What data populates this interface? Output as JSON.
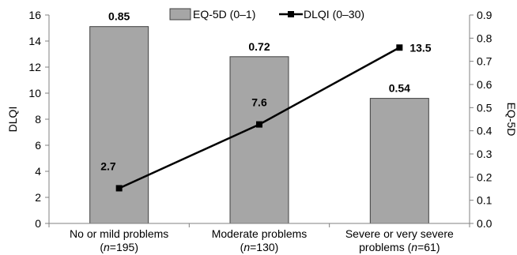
{
  "chart_data": {
    "type": "bar",
    "categories": [
      {
        "line1": "No or mild problems",
        "n_prefix": "(",
        "n_label": "n",
        "n_value": "=195)"
      },
      {
        "line1": "Moderate problems",
        "n_prefix": "(",
        "n_label": "n",
        "n_value": "=130)"
      },
      {
        "line1": "Severe or very severe",
        "line2_prefix": "problems (",
        "n_label": "n",
        "n_value": "=61)"
      }
    ],
    "series": [
      {
        "name": "EQ-5D (0–1)",
        "type": "bar",
        "axis": "right",
        "values": [
          0.85,
          0.72,
          0.54
        ],
        "labels": [
          "0.85",
          "0.72",
          "0.54"
        ],
        "color": "#a6a6a6"
      },
      {
        "name": "DLQI (0–30)",
        "type": "line",
        "axis": "left",
        "values": [
          2.7,
          7.6,
          13.5
        ],
        "labels": [
          "2.7",
          "7.6",
          "13.5"
        ],
        "color": "#000000"
      }
    ],
    "ylabel_left": "DLQI",
    "ylabel_right": "EQ-5D",
    "ylim_left": [
      0,
      16
    ],
    "yticks_left": [
      "0",
      "2",
      "4",
      "6",
      "8",
      "10",
      "12",
      "14",
      "16"
    ],
    "ylim_right": [
      0,
      0.9
    ],
    "yticks_right": [
      "0.0",
      "0.1",
      "0.2",
      "0.3",
      "0.4",
      "0.5",
      "0.6",
      "0.7",
      "0.8",
      "0.9"
    ],
    "legend_position": "top",
    "grid": false
  }
}
